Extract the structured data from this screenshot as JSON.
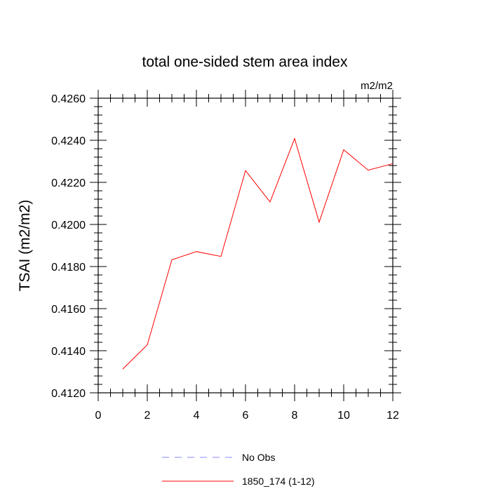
{
  "chart_data": {
    "type": "line",
    "title": "total one-sided stem area index",
    "units": "m2/m2",
    "ylabel": "TSAI  (m2/m2)",
    "xlabel": "",
    "xlim": [
      0,
      12
    ],
    "ylim": [
      0.412,
      0.426
    ],
    "xticks": [
      0,
      2,
      4,
      6,
      8,
      10,
      12
    ],
    "xtick_labels": [
      "0",
      "2",
      "4",
      "6",
      "8",
      "10",
      "12"
    ],
    "yticks": [
      0.412,
      0.414,
      0.416,
      0.418,
      0.42,
      0.422,
      0.424,
      0.426
    ],
    "ytick_labels": [
      "0.4120",
      "0.4140",
      "0.4160",
      "0.4180",
      "0.4200",
      "0.4220",
      "0.4240",
      "0.4260"
    ],
    "grid": false,
    "legend_position": "bottom-center",
    "series": [
      {
        "name": "1850_174 (1-12)",
        "color": "#ff0000",
        "style": "solid",
        "x": [
          1,
          2,
          3,
          4,
          5,
          6,
          7,
          8,
          9,
          10,
          11,
          12
        ],
        "y": [
          0.41313,
          0.41428,
          0.41832,
          0.41871,
          0.41848,
          0.42256,
          0.42107,
          0.42408,
          0.42011,
          0.42355,
          0.42258,
          0.42289
        ]
      }
    ],
    "legend": [
      {
        "label": "No Obs",
        "color": "#8888ff",
        "style": "dashed"
      },
      {
        "label": "1850_174 (1-12)",
        "color": "#ff0000",
        "style": "solid"
      }
    ]
  }
}
